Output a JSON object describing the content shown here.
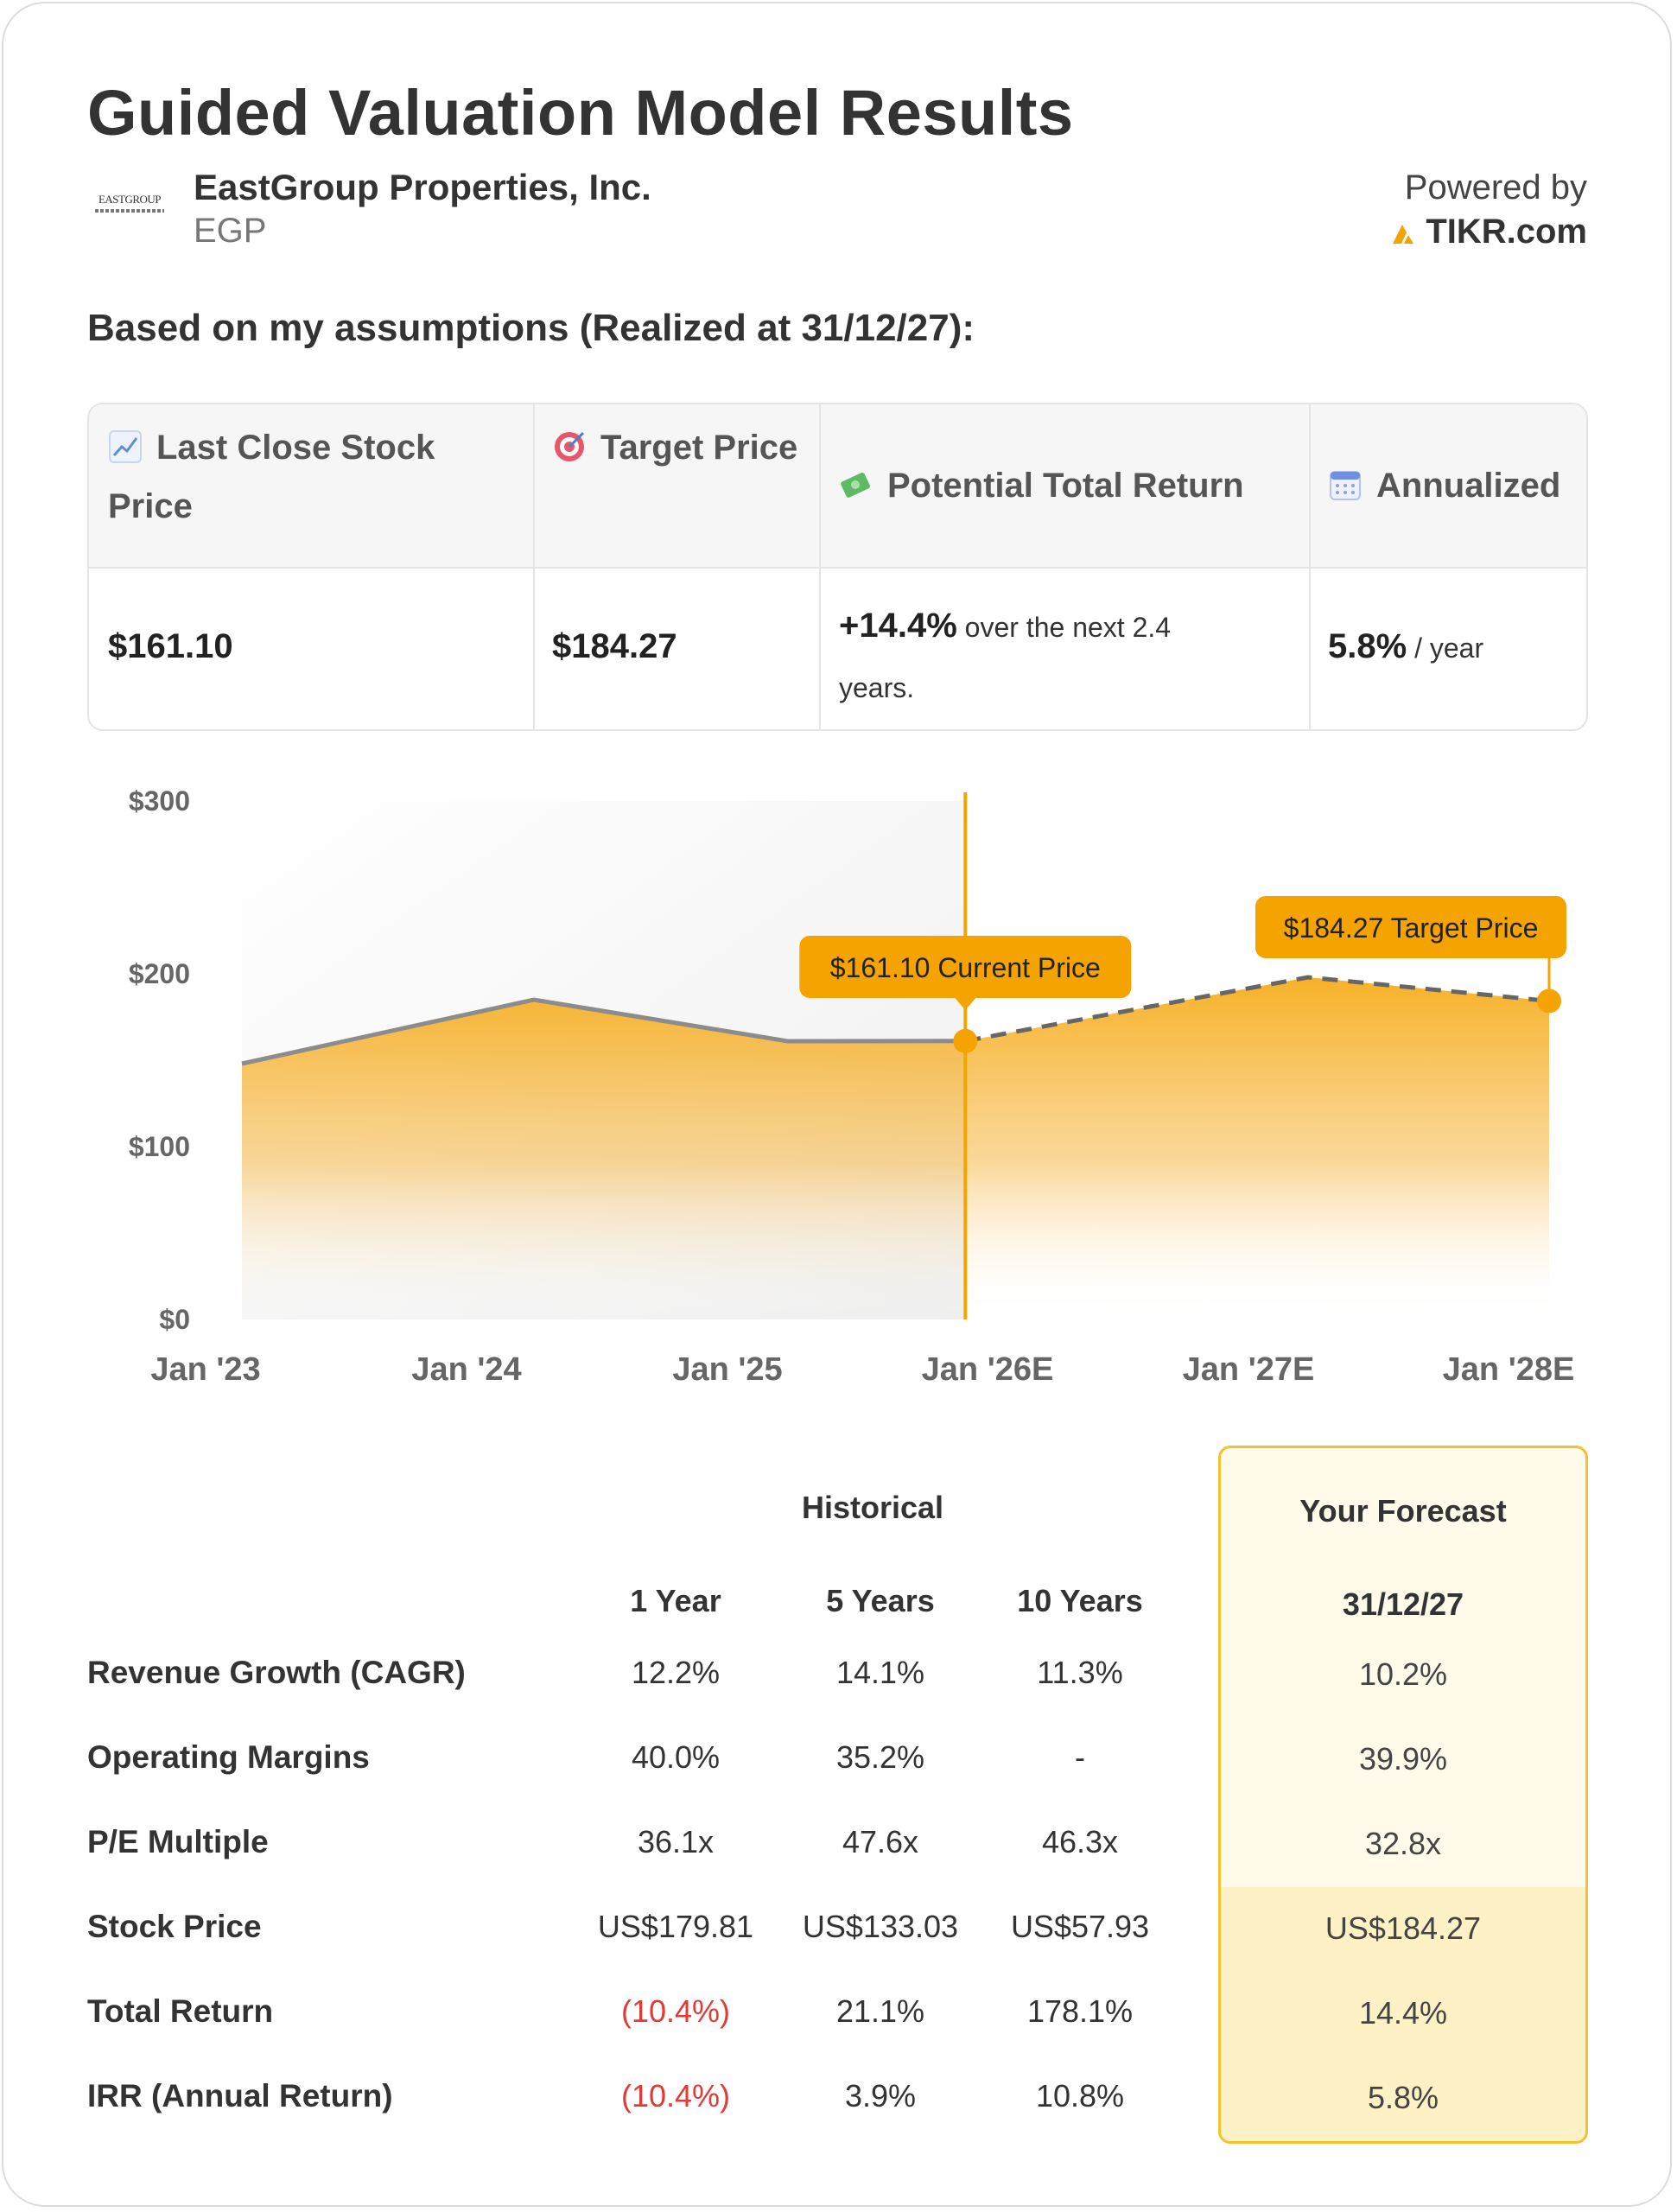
{
  "title": "Guided Valuation Model Results",
  "company": {
    "logo_text": "EASTGROUP",
    "name": "EastGroup Properties, Inc.",
    "ticker": "EGP"
  },
  "powered_by": {
    "label": "Powered by",
    "brand": "TIKR.com"
  },
  "assumption_heading": "Based on my assumptions (Realized at 31/12/27):",
  "summary": {
    "headers": {
      "last_close": "Last Close Stock Price",
      "target": "Target Price",
      "potential": "Potential Total Return",
      "annualized": "Annualized"
    },
    "values": {
      "last_close": "$161.10",
      "target": "$184.27",
      "potential_main": "+14.4%",
      "potential_rest": " over the next 2.4",
      "potential_rest2": "years.",
      "annualized_main": "5.8%",
      "annualized_rest": " / year"
    }
  },
  "chart_data": {
    "type": "area",
    "x": [
      "Jan '23",
      "Jan '24",
      "Jan '25",
      "Jan '26E",
      "Jan '27E",
      "Jan '28E"
    ],
    "y_ticks": [
      "$300",
      "$200",
      "$100",
      "$0"
    ],
    "ylim": [
      0,
      300
    ],
    "historical": [
      {
        "t": 2022.85,
        "v": 148
      },
      {
        "t": 2024.0,
        "v": 185
      },
      {
        "t": 2025.0,
        "v": 161
      },
      {
        "t": 2025.7,
        "v": 161.1
      }
    ],
    "forecast": [
      {
        "t": 2025.7,
        "v": 161.1
      },
      {
        "t": 2027.05,
        "v": 198
      },
      {
        "t": 2028.0,
        "v": 184.27
      }
    ],
    "current_marker": {
      "t": 2025.7,
      "v": 161.1,
      "label": "$161.10 Current Price"
    },
    "target_marker": {
      "t": 2028.0,
      "v": 184.27,
      "label": "$184.27 Target Price"
    },
    "colors": {
      "accent": "#f5a300",
      "history_line": "#8c8c8c",
      "forecast_line": "#666666"
    }
  },
  "metrics": {
    "historical_label": "Historical",
    "forecast_label": "Your Forecast",
    "columns": [
      "1 Year",
      "5 Years",
      "10 Years"
    ],
    "forecast_column": "31/12/27",
    "rows": [
      {
        "label": "Revenue Growth (CAGR)",
        "values": [
          "12.2%",
          "14.1%",
          "11.3%"
        ],
        "forecast": "10.2%"
      },
      {
        "label": "Operating Margins",
        "values": [
          "40.0%",
          "35.2%",
          "-"
        ],
        "forecast": "39.9%"
      },
      {
        "label": "P/E Multiple",
        "values": [
          "36.1x",
          "47.6x",
          "46.3x"
        ],
        "forecast": "32.8x"
      },
      {
        "label": "Stock Price",
        "values": [
          "US$179.81",
          "US$133.03",
          "US$57.93"
        ],
        "forecast": "US$184.27"
      },
      {
        "label": "Total Return",
        "values": [
          "(10.4%)",
          "21.1%",
          "178.1%"
        ],
        "forecast": "14.4%"
      },
      {
        "label": "IRR (Annual Return)",
        "values": [
          "(10.4%)",
          "3.9%",
          "10.8%"
        ],
        "forecast": "5.8%"
      }
    ],
    "negative_color": "#e53935"
  }
}
